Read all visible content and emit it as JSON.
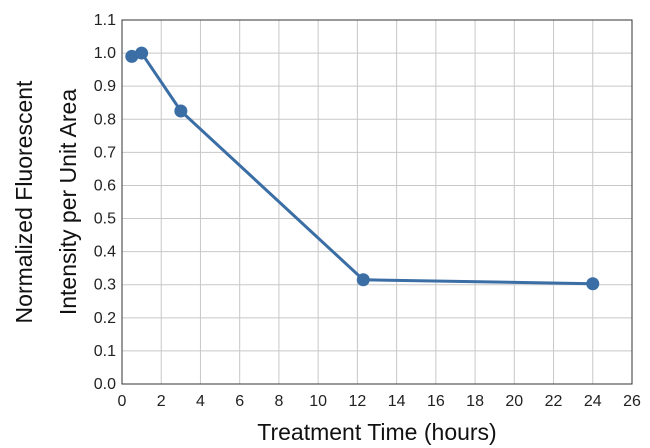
{
  "chart_data": {
    "type": "line",
    "title": "",
    "xlabel": "Treatment Time (hours)",
    "ylabel_lines": [
      "Normalized Fluorescent",
      "Intensity per Unit Area"
    ],
    "xlim": [
      0,
      26
    ],
    "ylim": [
      0,
      1.1
    ],
    "xticks": [
      0,
      2,
      4,
      6,
      8,
      10,
      12,
      14,
      16,
      18,
      20,
      22,
      24,
      26
    ],
    "yticks": [
      0.0,
      0.1,
      0.2,
      0.3,
      0.4,
      0.5,
      0.6,
      0.7,
      0.8,
      0.9,
      1.0,
      1.1
    ],
    "grid": true,
    "series": [
      {
        "x": [
          0.5,
          1,
          3,
          12.3,
          24
        ],
        "y": [
          0.99,
          1.0,
          0.825,
          0.315,
          0.303
        ]
      }
    ],
    "colors": {
      "series": "#3a6ea5",
      "grid": "#c8c8c8",
      "frame": "#333333"
    }
  }
}
